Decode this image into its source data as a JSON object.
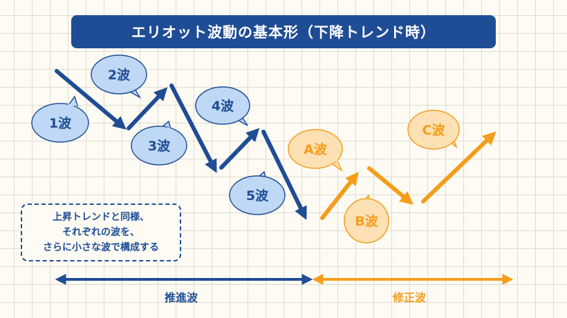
{
  "title": "エリオット波動の基本形（下降トレンド時）",
  "waves": {
    "wave1": "1波",
    "wave2": "2波",
    "wave3": "3波",
    "wave4": "4波",
    "wave5": "5波",
    "waveA": "A波",
    "waveB": "B波",
    "waveC": "C波"
  },
  "note": {
    "line1": "上昇トレンドと同様、",
    "line2": "それぞれの波を、",
    "line3": "さらに小さな波で構成する"
  },
  "phases": {
    "impulse": "推進波",
    "corrective": "修正波"
  },
  "colors": {
    "impulse": "#1f4d95",
    "corrective": "#f59d1a",
    "impulse_bubble_fill": "#bfd8f5",
    "corrective_bubble_fill": "#fde1b5"
  }
}
